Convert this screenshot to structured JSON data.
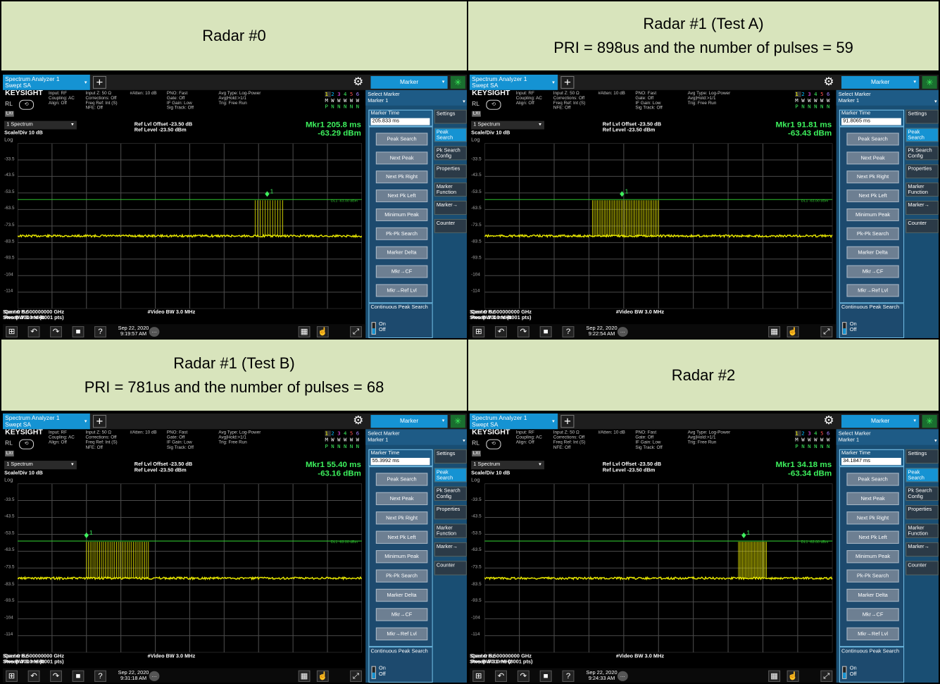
{
  "panels": [
    {
      "header": [
        "Radar #0",
        ""
      ],
      "app": {
        "tab": "Spectrum Analyzer 1",
        "mode": "Swept SA",
        "menu": "Marker"
      },
      "marker_readout": {
        "label": "Mkr1",
        "time": "205.8 ms",
        "level": "-63.29 dBm"
      },
      "marker_time_value": "205.833 ms",
      "datetime": {
        "date": "Sep 22, 2020",
        "time": "9:19:57 AM"
      },
      "sweep": "Sweep 300 ms (8001 pts)",
      "pulses": {
        "start": 0.69,
        "end": 0.77,
        "count": 12
      },
      "marker_pos": 0.725
    },
    {
      "header": [
        "Radar #1 (Test A)",
        "PRI = 898us and the number of pulses = 59"
      ],
      "app": {
        "tab": "Spectrum Analyzer 1",
        "mode": "Swept SA",
        "menu": "Marker"
      },
      "marker_readout": {
        "label": "Mkr1",
        "time": "91.81 ms",
        "level": "-63.43 dBm"
      },
      "marker_time_value": "91.8065 ms",
      "datetime": {
        "date": "Sep 22, 2020",
        "time": "9:22:54 AM"
      },
      "sweep": "Sweep 300 ms (8001 pts)",
      "pulses": {
        "start": 0.31,
        "end": 0.5,
        "count": 40
      },
      "marker_pos": 0.395
    },
    {
      "header": [
        "Radar #1 (Test B)",
        "PRI = 781us and the number of pulses = 68"
      ],
      "app": {
        "tab": "Spectrum Analyzer 1",
        "mode": "Swept SA",
        "menu": "Marker"
      },
      "marker_readout": {
        "label": "Mkr1",
        "time": "55.40 ms",
        "level": "-63.16 dBm"
      },
      "marker_time_value": "55.3992 ms",
      "datetime": {
        "date": "Sep 22, 2020",
        "time": "9:31:18 AM"
      },
      "sweep": "Sweep 300 ms (8001 pts)",
      "pulses": {
        "start": 0.2,
        "end": 0.38,
        "count": 34
      },
      "marker_pos": 0.2
    },
    {
      "header": [
        "Radar #2",
        ""
      ],
      "app": {
        "tab": "Spectrum Analyzer 1",
        "mode": "Swept SA",
        "menu": "Marker"
      },
      "marker_readout": {
        "label": "Mkr1",
        "time": "34.18 ms",
        "level": "-63.34 dBm"
      },
      "marker_time_value": "34.1847 ms",
      "datetime": {
        "date": "Sep 22, 2020",
        "time": "9:24:33 AM"
      },
      "sweep": "Sweep 50.1 ms (8001 pts)",
      "pulses": {
        "start": 0.73,
        "end": 0.81,
        "count": 22
      },
      "marker_pos": 0.745
    }
  ],
  "common": {
    "logo": "KEYSIGHT",
    "rl": "RL",
    "lxi": "LXI",
    "info_cols": [
      "Input: RF\nCoupling: AC\nAlign: Off",
      "Input Z: 50 Ω\nCorrections: Off\nFreq Ref: Int (S)\nNFE: Off",
      "#Atten: 10 dB",
      "PNO: Fast\nGate: Off\nIF Gain: Low\nSig Track: Off",
      "Avg Type: Log-Power\nAvg|Hold:>1/1\nTrig: Free Run"
    ],
    "trace_numbers": [
      "1",
      "2",
      "3",
      "4",
      "5",
      "6"
    ],
    "trace_row2": "M W W W W W",
    "trace_row3": "P N N N N N",
    "spectrum_select": "1 Spectrum",
    "scale": "Scale/Div 10 dB",
    "log": "Log",
    "ref_offset": "Ref Lvl Offset -23.50 dB",
    "ref_level": "Ref Level -23.50 dBm",
    "y_ticks": [
      "-33.5",
      "-43.5",
      "-53.5",
      "-63.5",
      "-73.5",
      "-83.5",
      "-93.5",
      "-104",
      "-114"
    ],
    "dl_label": "DL1 -63.00 dBm",
    "center": "Center 5.500000000 GHz",
    "res_bw": "Res BW 3.0 MHz",
    "video_bw": "#Video BW 3.0 MHz",
    "span": "Span 0 Hz",
    "select_marker": "Select Marker",
    "marker_1": "Marker 1",
    "marker_time_label": "Marker Time",
    "buttons": [
      "Peak Search",
      "Next Peak",
      "Next Pk Right",
      "Next Pk Left",
      "Minimum Peak",
      "Pk-Pk Search",
      "Marker Delta",
      "Mkr→CF",
      "Mkr→Ref Lvl"
    ],
    "continuous": "Continuous Peak Search",
    "on": "On",
    "off": "Off",
    "tabs": [
      "Settings",
      "Peak Search",
      "Pk Search Config",
      "Properties",
      "Marker Function",
      "Marker→",
      "Counter"
    ],
    "colors": {
      "header_bg": "#d8e4bc",
      "accent": "#1593d3",
      "trace": "#ffff00",
      "readout": "#3df05d"
    }
  }
}
